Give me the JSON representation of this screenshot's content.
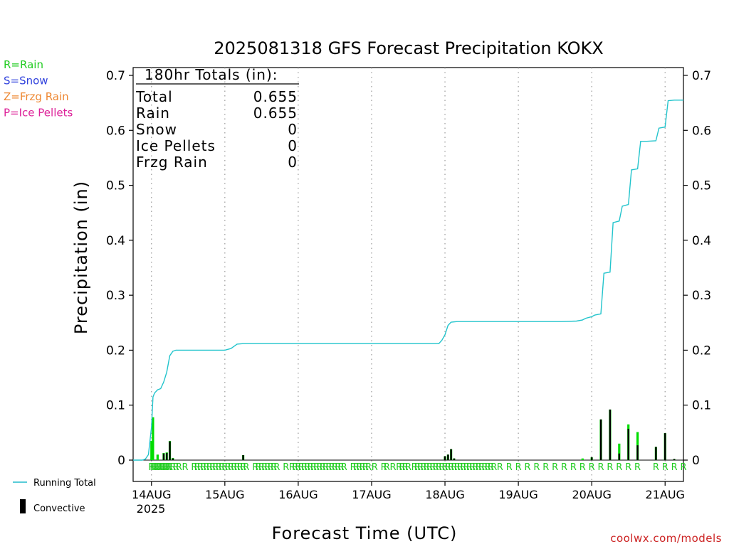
{
  "chart_data": {
    "type": "bar",
    "title": "2025081318 GFS Forecast Precipitation KOKX",
    "xlabel": "Forecast Time (UTC)",
    "ylabel": "Precipitation (in)",
    "ylim": [
      0,
      0.7
    ],
    "y_ticks": [
      0,
      0.1,
      0.2,
      0.3,
      0.4,
      0.5,
      0.6,
      0.7
    ],
    "y_tick_labels": [
      "0",
      "0.1",
      "0.2",
      "0.3",
      "0.4",
      "0.5",
      "0.6",
      "0.7"
    ],
    "x_unit": "hours since 2025-08-13 18 UTC",
    "x_range": [
      0,
      180
    ],
    "grid": "vertical dotted at day boundaries",
    "day_ticks": [
      {
        "hour": 6,
        "label": "14AUG"
      },
      {
        "hour": 30,
        "label": "15AUG"
      },
      {
        "hour": 54,
        "label": "16AUG"
      },
      {
        "hour": 78,
        "label": "17AUG"
      },
      {
        "hour": 102,
        "label": "18AUG"
      },
      {
        "hour": 126,
        "label": "19AUG"
      },
      {
        "hour": 150,
        "label": "20AUG"
      },
      {
        "hour": 174,
        "label": "21AUG"
      }
    ],
    "year_label": "2025",
    "totals": {
      "header": "180hr Totals (in):",
      "rows": [
        {
          "label": "Total",
          "value": "0.655"
        },
        {
          "label": "Rain",
          "value": "0.655"
        },
        {
          "label": "Snow",
          "value": "0"
        },
        {
          "label": "Ice Pellets",
          "value": "0"
        },
        {
          "label": "Frzg Rain",
          "value": "0"
        }
      ]
    },
    "precip_type_legend": [
      {
        "text": "R=Rain",
        "color": "#22cc22"
      },
      {
        "text": "S=Snow",
        "color": "#3344dd"
      },
      {
        "text": "Z=Frzg Rain",
        "color": "#ee8833"
      },
      {
        "text": "P=Ice Pellets",
        "color": "#dd2299"
      }
    ],
    "series_legend": [
      {
        "name": "Running Total",
        "color": "#22bbcc"
      },
      {
        "name": "Convective",
        "color": "#000000"
      }
    ],
    "colors": {
      "rain_bar": "#00dd00",
      "convective_bar": "#000000",
      "running_total": "#22c4cc",
      "type_marker": "#22cc22"
    },
    "bars": [
      {
        "hour": 6,
        "total": 0.035,
        "convective": 0.0
      },
      {
        "hour": 6.5,
        "total": 0.078,
        "convective": 0.0
      },
      {
        "hour": 8,
        "total": 0.01,
        "convective": 0.0
      },
      {
        "hour": 10,
        "total": 0.013,
        "convective": 0.012
      },
      {
        "hour": 11,
        "total": 0.014,
        "convective": 0.013
      },
      {
        "hour": 12,
        "total": 0.035,
        "convective": 0.034
      },
      {
        "hour": 13,
        "total": 0.004,
        "convective": 0.003
      },
      {
        "hour": 36,
        "total": 0.009,
        "convective": 0.009
      },
      {
        "hour": 102,
        "total": 0.007,
        "convective": 0.007
      },
      {
        "hour": 103,
        "total": 0.01,
        "convective": 0.01
      },
      {
        "hour": 104,
        "total": 0.02,
        "convective": 0.02
      },
      {
        "hour": 105,
        "total": 0.003,
        "convective": 0.003
      },
      {
        "hour": 147,
        "total": 0.003,
        "convective": 0.0
      },
      {
        "hour": 150,
        "total": 0.005,
        "convective": 0.005
      },
      {
        "hour": 153,
        "total": 0.074,
        "convective": 0.074
      },
      {
        "hour": 156,
        "total": 0.092,
        "convective": 0.092
      },
      {
        "hour": 159,
        "total": 0.03,
        "convective": 0.012
      },
      {
        "hour": 162,
        "total": 0.065,
        "convective": 0.057
      },
      {
        "hour": 165,
        "total": 0.051,
        "convective": 0.027
      },
      {
        "hour": 171,
        "total": 0.024,
        "convective": 0.024
      },
      {
        "hour": 174,
        "total": 0.049,
        "convective": 0.049
      },
      {
        "hour": 177,
        "total": 0.002,
        "convective": 0.002
      }
    ],
    "running_total": [
      [
        0,
        0
      ],
      [
        3,
        0
      ],
      [
        4,
        0.002
      ],
      [
        5,
        0.01
      ],
      [
        6,
        0.06
      ],
      [
        6.5,
        0.115
      ],
      [
        7,
        0.122
      ],
      [
        8,
        0.128
      ],
      [
        9,
        0.13
      ],
      [
        10,
        0.142
      ],
      [
        11,
        0.16
      ],
      [
        12,
        0.19
      ],
      [
        13,
        0.198
      ],
      [
        14,
        0.2
      ],
      [
        30,
        0.2
      ],
      [
        32,
        0.203
      ],
      [
        34,
        0.211
      ],
      [
        36,
        0.212
      ],
      [
        100,
        0.212
      ],
      [
        101,
        0.218
      ],
      [
        102,
        0.228
      ],
      [
        103,
        0.245
      ],
      [
        104,
        0.251
      ],
      [
        106,
        0.252
      ],
      [
        130,
        0.252
      ],
      [
        140,
        0.252
      ],
      [
        145,
        0.253
      ],
      [
        147,
        0.255
      ],
      [
        148,
        0.258
      ],
      [
        150,
        0.261
      ],
      [
        151,
        0.264
      ],
      [
        152,
        0.265
      ],
      [
        153,
        0.266
      ],
      [
        154,
        0.34
      ],
      [
        156,
        0.342
      ],
      [
        157,
        0.432
      ],
      [
        159,
        0.435
      ],
      [
        160,
        0.462
      ],
      [
        162,
        0.465
      ],
      [
        163,
        0.528
      ],
      [
        165,
        0.53
      ],
      [
        166,
        0.58
      ],
      [
        168,
        0.58
      ],
      [
        171,
        0.581
      ],
      [
        172,
        0.604
      ],
      [
        174,
        0.606
      ],
      [
        175,
        0.654
      ],
      [
        177,
        0.655
      ],
      [
        180,
        0.655
      ]
    ],
    "type_markers": [
      {
        "text": "R",
        "hours": [
          6,
          6.5,
          7,
          7.5,
          8,
          8.5,
          9,
          9.5,
          10,
          10.5,
          11,
          11.5,
          12,
          13,
          14,
          15,
          17,
          20,
          21,
          22,
          23,
          24,
          25,
          26,
          27,
          28,
          29,
          30,
          31,
          32,
          33,
          34,
          35,
          36,
          37,
          40,
          41,
          42,
          43,
          44,
          45,
          46,
          47,
          50,
          52,
          53,
          54,
          55,
          56,
          57,
          58,
          59,
          60,
          61,
          62,
          63,
          64,
          65,
          66,
          67,
          68,
          69,
          72,
          73,
          74,
          75,
          76,
          77,
          79,
          82,
          83,
          85,
          87,
          88,
          89,
          90,
          92,
          93,
          94,
          95,
          96,
          97,
          98,
          99,
          100,
          101,
          102,
          103,
          104,
          105,
          106,
          107,
          108,
          109,
          110,
          111,
          112,
          113,
          114,
          115,
          116,
          117,
          118,
          120,
          123,
          126,
          129,
          132,
          135,
          138,
          141,
          144,
          147,
          150,
          153,
          156,
          159,
          162,
          165,
          171,
          174,
          177,
          180
        ]
      }
    ],
    "credit": "coolwx.com/models"
  }
}
